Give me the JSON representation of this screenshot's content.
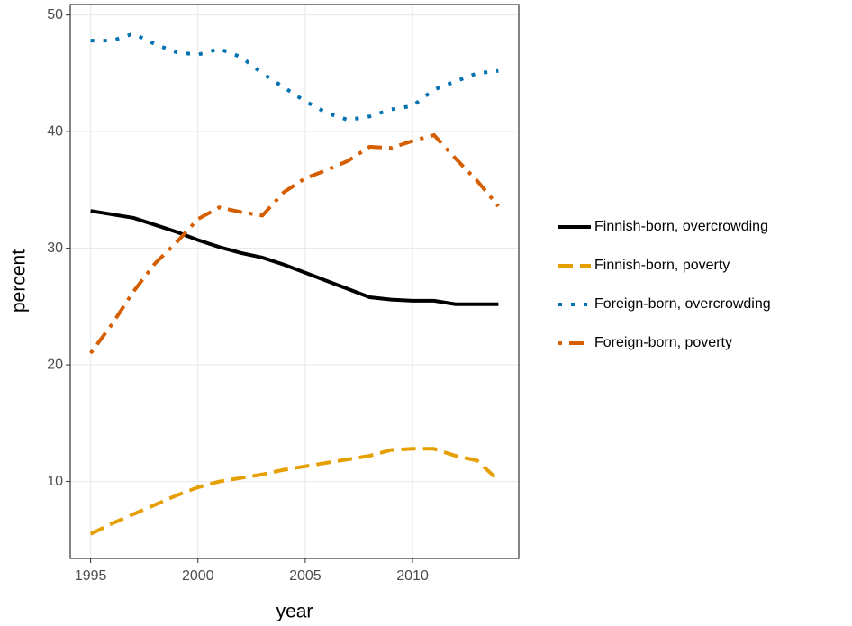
{
  "chart_data": {
    "type": "line",
    "x_label": "year",
    "y_label": "percent",
    "x": [
      1995,
      1996,
      1997,
      1998,
      1999,
      2000,
      2001,
      2002,
      2003,
      2004,
      2005,
      2006,
      2007,
      2008,
      2009,
      2010,
      2011,
      2012,
      2013,
      2014
    ],
    "series": [
      {
        "name": "Finnish-born, overcrowding",
        "color": "#000000",
        "linetype": "solid",
        "values": [
          33.2,
          32.9,
          32.6,
          32.0,
          31.4,
          30.7,
          30.1,
          29.6,
          29.2,
          28.6,
          27.9,
          27.2,
          26.5,
          25.8,
          25.6,
          25.5,
          25.5,
          25.2,
          25.2,
          25.2
        ]
      },
      {
        "name": "Finnish-born, poverty",
        "color": "#E69F00",
        "linetype": "dashed",
        "values": [
          5.5,
          6.4,
          7.2,
          8.0,
          8.8,
          9.5,
          10.0,
          10.3,
          10.6,
          11.0,
          11.3,
          11.6,
          11.9,
          12.2,
          12.7,
          12.8,
          12.8,
          12.2,
          11.8,
          10.1
        ]
      },
      {
        "name": "Foreign-born, overcrowding",
        "color": "#0072B2",
        "linetype": "dotted",
        "values": [
          47.8,
          47.8,
          48.4,
          47.5,
          46.8,
          46.6,
          47.1,
          46.4,
          45.0,
          43.8,
          42.6,
          41.6,
          41.0,
          41.3,
          41.9,
          42.2,
          43.6,
          44.3,
          45.0,
          45.2
        ]
      },
      {
        "name": "Foreign-born, poverty",
        "color": "#D55E00",
        "linetype": "dotdash",
        "values": [
          21.0,
          23.5,
          26.3,
          28.7,
          30.5,
          32.5,
          33.5,
          33.1,
          32.8,
          34.8,
          36.0,
          36.7,
          37.5,
          38.7,
          38.6,
          39.2,
          39.7,
          37.7,
          35.8,
          33.6
        ]
      }
    ],
    "xlim": [
      1994.05,
      2014.95
    ],
    "xticks": [
      1995,
      2000,
      2005,
      2010
    ],
    "ylim": [
      3.4,
      50.9
    ],
    "yticks": [
      10,
      20,
      30,
      40,
      50
    ],
    "grid": true,
    "legend": "right"
  }
}
